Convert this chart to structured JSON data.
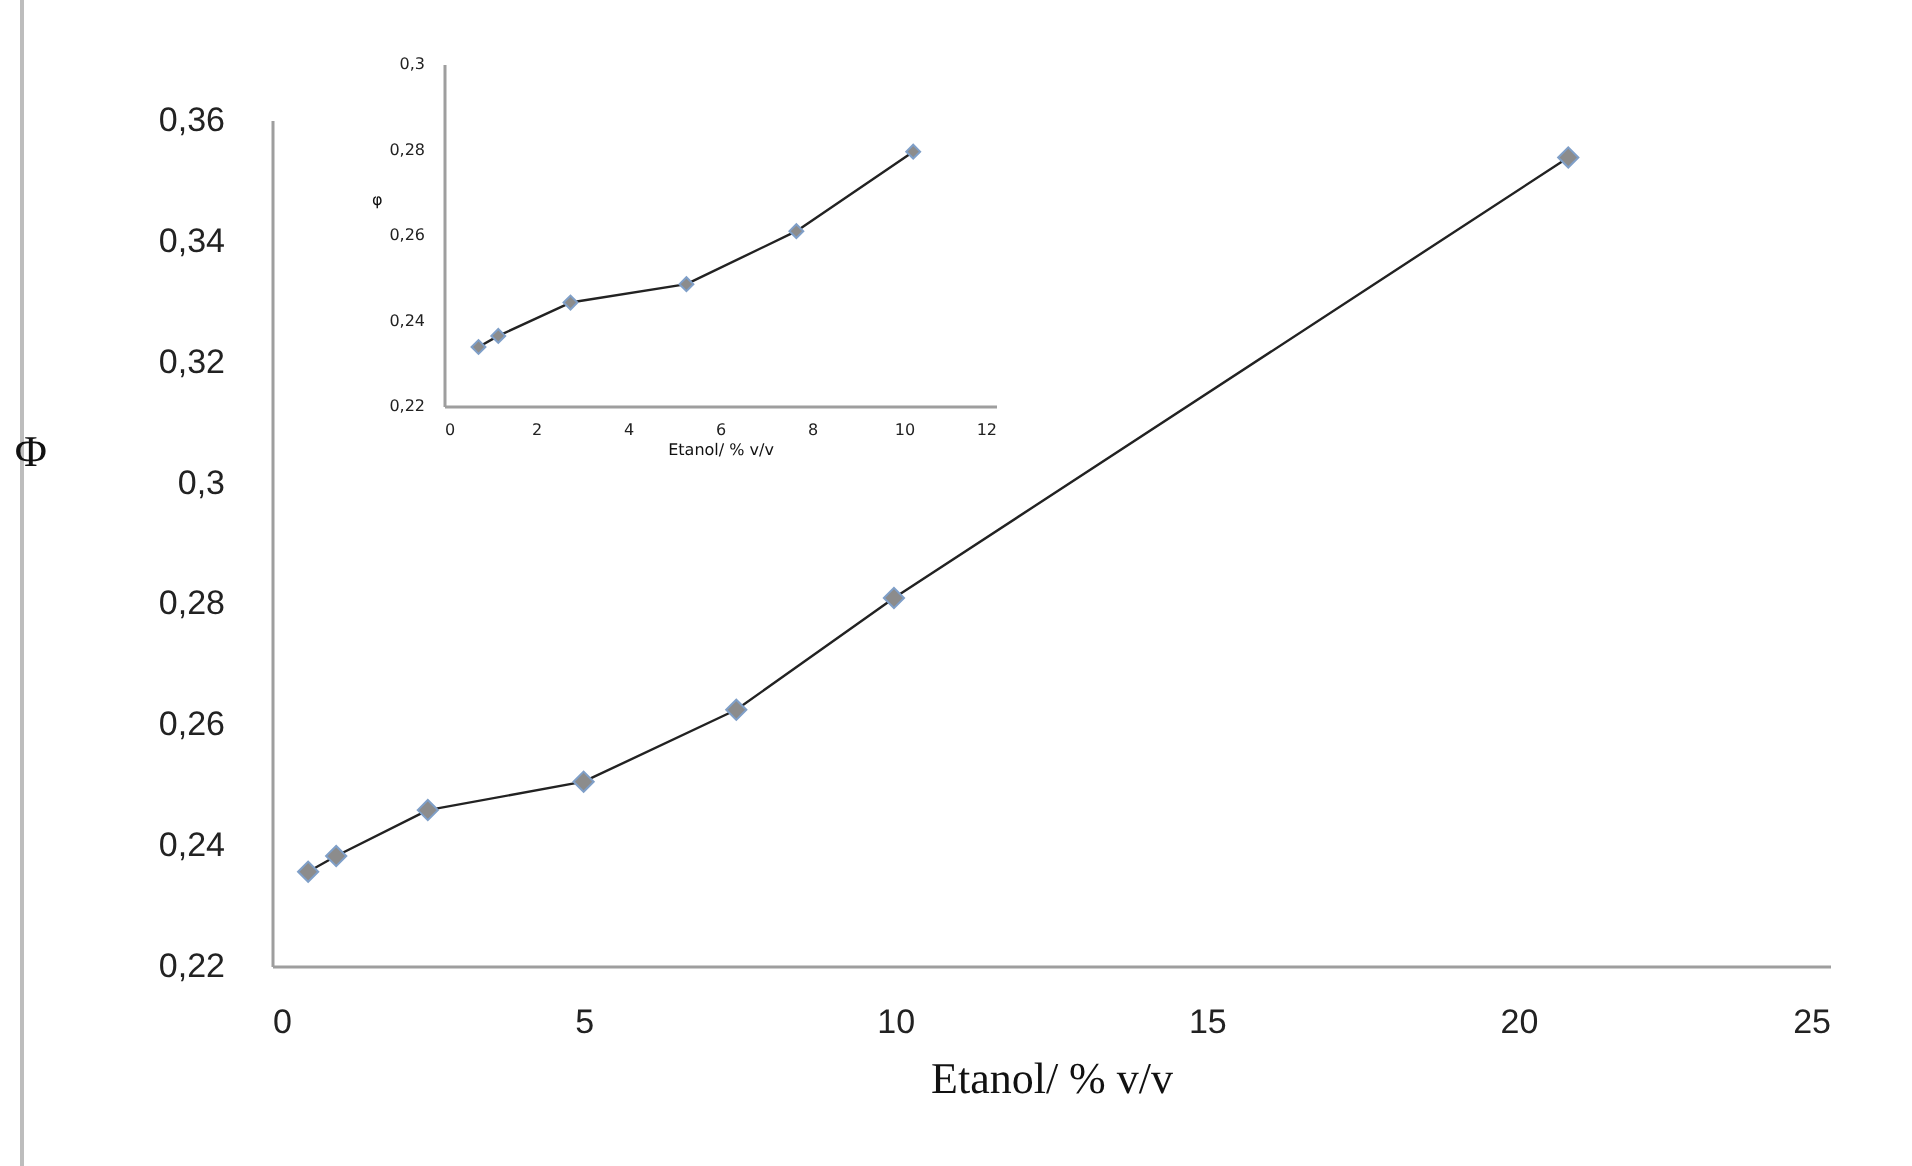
{
  "chart_data": [
    {
      "type": "line",
      "xlabel": "Etanol/ % v/v",
      "ylabel": "Φ",
      "marker": "diamond",
      "grid": false,
      "legend": false,
      "xlim": [
        0,
        25
      ],
      "xticks": [
        0,
        5,
        10,
        15,
        20,
        25
      ],
      "ylim": [
        0.22,
        0.36
      ],
      "yticks": [
        {
          "value": 0.22,
          "label": "0,22"
        },
        {
          "value": 0.24,
          "label": "0,24"
        },
        {
          "value": 0.26,
          "label": "0,26"
        },
        {
          "value": 0.28,
          "label": "0,28"
        },
        {
          "value": 0.3,
          "label": "0,3"
        },
        {
          "value": 0.32,
          "label": "0,32"
        },
        {
          "value": 0.34,
          "label": "0,34"
        },
        {
          "value": 0.36,
          "label": "0,36"
        }
      ],
      "series": [
        {
          "color": "#8c8c8c",
          "x": [
            0.58,
            1.03,
            2.5,
            5.0,
            7.45,
            9.98,
            20.8
          ],
          "values": [
            0.2356,
            0.2382,
            0.2458,
            0.2505,
            0.2624,
            0.2809,
            0.3538
          ]
        }
      ]
    },
    {
      "type": "line",
      "xlabel": "Etanol/ % v/v",
      "ylabel": "φ",
      "marker": "diamond",
      "grid": false,
      "legend": false,
      "xlim": [
        0,
        12
      ],
      "xticks": [
        0,
        2,
        4,
        6,
        8,
        10,
        12
      ],
      "ylim": [
        0.22,
        0.3
      ],
      "yticks": [
        {
          "value": 0.22,
          "label": "0,22"
        },
        {
          "value": 0.24,
          "label": "0,24"
        },
        {
          "value": 0.26,
          "label": "0,26"
        },
        {
          "value": 0.28,
          "label": "0,28"
        },
        {
          "value": 0.3,
          "label": "0,3"
        }
      ],
      "series": [
        {
          "color": "#8c8c8c",
          "x": [
            0.75,
            1.18,
            2.75,
            5.27,
            7.66,
            10.2
          ],
          "values": [
            0.2338,
            0.2364,
            0.2442,
            0.2485,
            0.2609,
            0.2795
          ]
        }
      ]
    }
  ]
}
